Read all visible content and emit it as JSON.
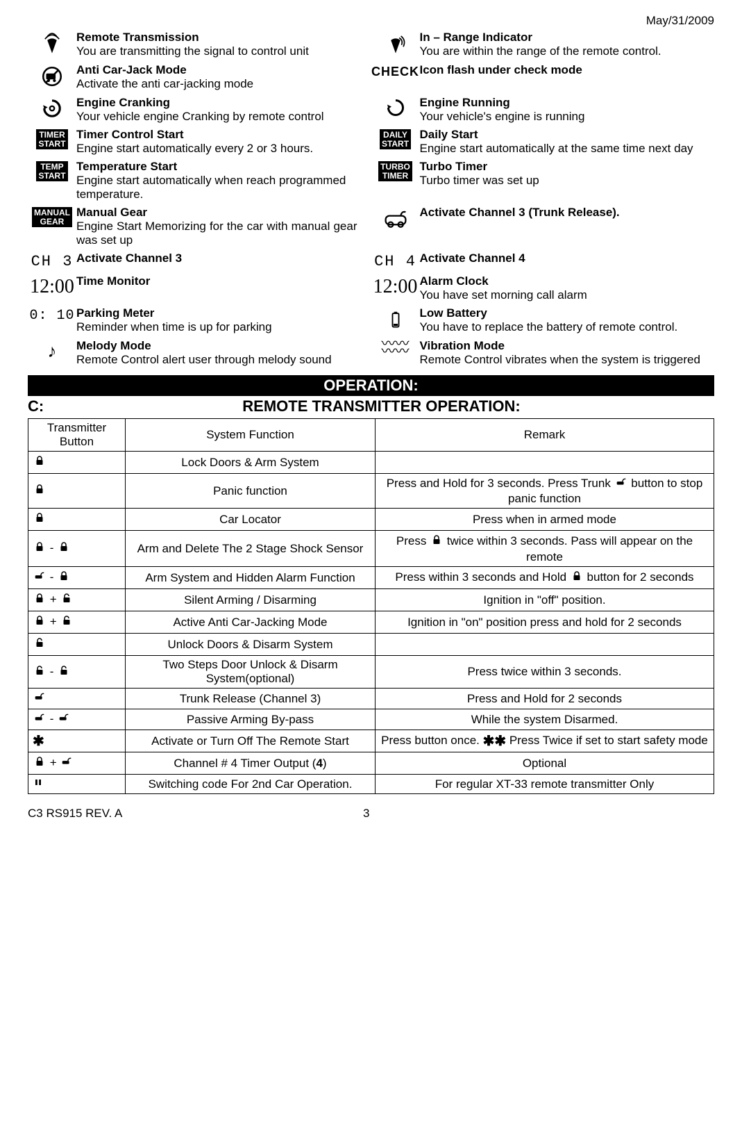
{
  "header": {
    "date": "May/31/2009"
  },
  "legend": [
    [
      {
        "icon": "antenna-transmit-icon",
        "title": "Remote Transmission",
        "desc": "You are transmitting the signal to control unit"
      },
      {
        "icon": "antenna-range-icon",
        "title": "In – Range Indicator",
        "desc": "You are within the range of the remote control."
      }
    ],
    [
      {
        "icon": "anti-carjack-icon",
        "title": "Anti Car-Jack Mode",
        "desc": "Activate the anti car-jacking mode"
      },
      {
        "icon": "check-icon",
        "title": "Icon flash under check mode",
        "desc": ""
      }
    ],
    [
      {
        "icon": "engine-crank-icon",
        "title": "Engine Cranking",
        "desc": "Your vehicle engine Cranking by remote control"
      },
      {
        "icon": "engine-run-icon",
        "title": "Engine Running",
        "desc": "Your vehicle's engine is running"
      }
    ],
    [
      {
        "icon": "timer-start-badge",
        "title": "Timer Control Start",
        "desc": "Engine start automatically every 2 or 3 hours."
      },
      {
        "icon": "daily-start-badge",
        "title": "Daily Start",
        "desc": "Engine start automatically at the same time next day"
      }
    ],
    [
      {
        "icon": "temp-start-badge",
        "title": "Temperature Start",
        "desc": "Engine start automatically when reach programmed temperature."
      },
      {
        "icon": "turbo-timer-badge",
        "title": "Turbo Timer",
        "desc": "Turbo timer was set up"
      }
    ],
    [
      {
        "icon": "manual-gear-badge",
        "title": "Manual Gear",
        "desc": "Engine Start Memorizing for the car with manual gear was set up",
        "justify": true
      },
      {
        "icon": "trunk-car-icon",
        "title": "Activate Channel 3 (Trunk Release).",
        "desc": ""
      }
    ],
    [
      {
        "icon": "ch3-icon",
        "title": "Activate Channel 3",
        "desc": ""
      },
      {
        "icon": "ch4-icon",
        "title": "Activate Channel 4",
        "desc": ""
      }
    ],
    [
      {
        "icon": "clock-icon",
        "title": "Time Monitor",
        "desc": ""
      },
      {
        "icon": "clock-icon",
        "title": "Alarm Clock",
        "desc": "You have set morning call alarm"
      }
    ],
    [
      {
        "icon": "parking-meter-icon",
        "title": "Parking Meter",
        "desc": "Reminder when time is up for parking"
      },
      {
        "icon": "low-battery-icon",
        "title": "Low Battery",
        "desc": "You have to replace the battery of remote control."
      }
    ],
    [
      {
        "icon": "melody-icon",
        "title": "Melody Mode",
        "desc": "Remote Control alert user through melody sound"
      },
      {
        "icon": "vibration-icon",
        "title": "Vibration Mode",
        "desc": "Remote Control vibrates when the system is triggered"
      }
    ]
  ],
  "icon_text": {
    "timer-start-badge": "TIMER\nSTART",
    "daily-start-badge": "DAILY\nSTART",
    "temp-start-badge": "TEMP\nSTART",
    "turbo-timer-badge": "TURBO\nTIMER",
    "manual-gear-badge": "MANUAL\nGEAR",
    "check-icon": "CHECK",
    "ch3-icon": "CH 3",
    "ch4-icon": "CH 4",
    "clock-icon": "12:00",
    "parking-meter-icon": "0: 10"
  },
  "operation": {
    "banner": "OPERATION:",
    "section_letter": "C:",
    "section_title": "REMOTE TRANSMITTER OPERATION:",
    "columns": [
      "Transmitter Button",
      "System Function",
      "Remark"
    ],
    "rows": [
      {
        "btn": "lock",
        "fn": "Lock Doors & Arm System",
        "rm": ""
      },
      {
        "btn": "lock",
        "fn": "Panic function",
        "rm": "Press and Hold for 3 seconds. Press Trunk {trunk} button to stop panic function"
      },
      {
        "btn": "lock",
        "fn": "Car Locator",
        "rm": "Press when in armed mode"
      },
      {
        "btn": "lock - lock",
        "fn": "Arm and Delete The 2 Stage Shock Sensor",
        "rm": "Press {lock} twice within 3 seconds. Pass will appear on the remote"
      },
      {
        "btn": "trunk - lock",
        "fn": "Arm System and Hidden Alarm Function",
        "rm": "Press within 3 seconds and Hold {lock} button for 2 seconds"
      },
      {
        "btn": "lock + unlock",
        "fn": "Silent Arming / Disarming",
        "rm": "Ignition in \"off\" position."
      },
      {
        "btn": "lock + unlock",
        "fn": "Active Anti Car-Jacking Mode",
        "rm": "Ignition in \"on\" position press and hold for 2 seconds"
      },
      {
        "btn": "unlock",
        "fn": "Unlock Doors & Disarm System",
        "rm": ""
      },
      {
        "btn": "unlock - unlock",
        "fn": "Two Steps Door Unlock & Disarm System(optional)",
        "rm": "Press twice within 3 seconds."
      },
      {
        "btn": "trunk",
        "fn": "Trunk Release (Channel 3)",
        "rm": "Press and Hold for 2 seconds"
      },
      {
        "btn": "trunk - trunk",
        "fn": "Passive Arming By-pass",
        "rm": "While the system Disarmed."
      },
      {
        "btn": "star",
        "fn": "Activate or Turn Off The Remote Start",
        "rm": "Press button once. {star}{star} Press Twice if set to start safety mode"
      },
      {
        "btn": "lock + trunk",
        "fn": "Channel # 4 Timer Output (4)",
        "rm": "Optional",
        "bold_in_fn": "4"
      },
      {
        "btn": "pause",
        "fn": "Switching code For 2nd Car Operation.",
        "rm": "For regular XT-33 remote transmitter Only"
      }
    ]
  },
  "footer": {
    "left": "C3 RS915 REV. A",
    "page": "3"
  }
}
